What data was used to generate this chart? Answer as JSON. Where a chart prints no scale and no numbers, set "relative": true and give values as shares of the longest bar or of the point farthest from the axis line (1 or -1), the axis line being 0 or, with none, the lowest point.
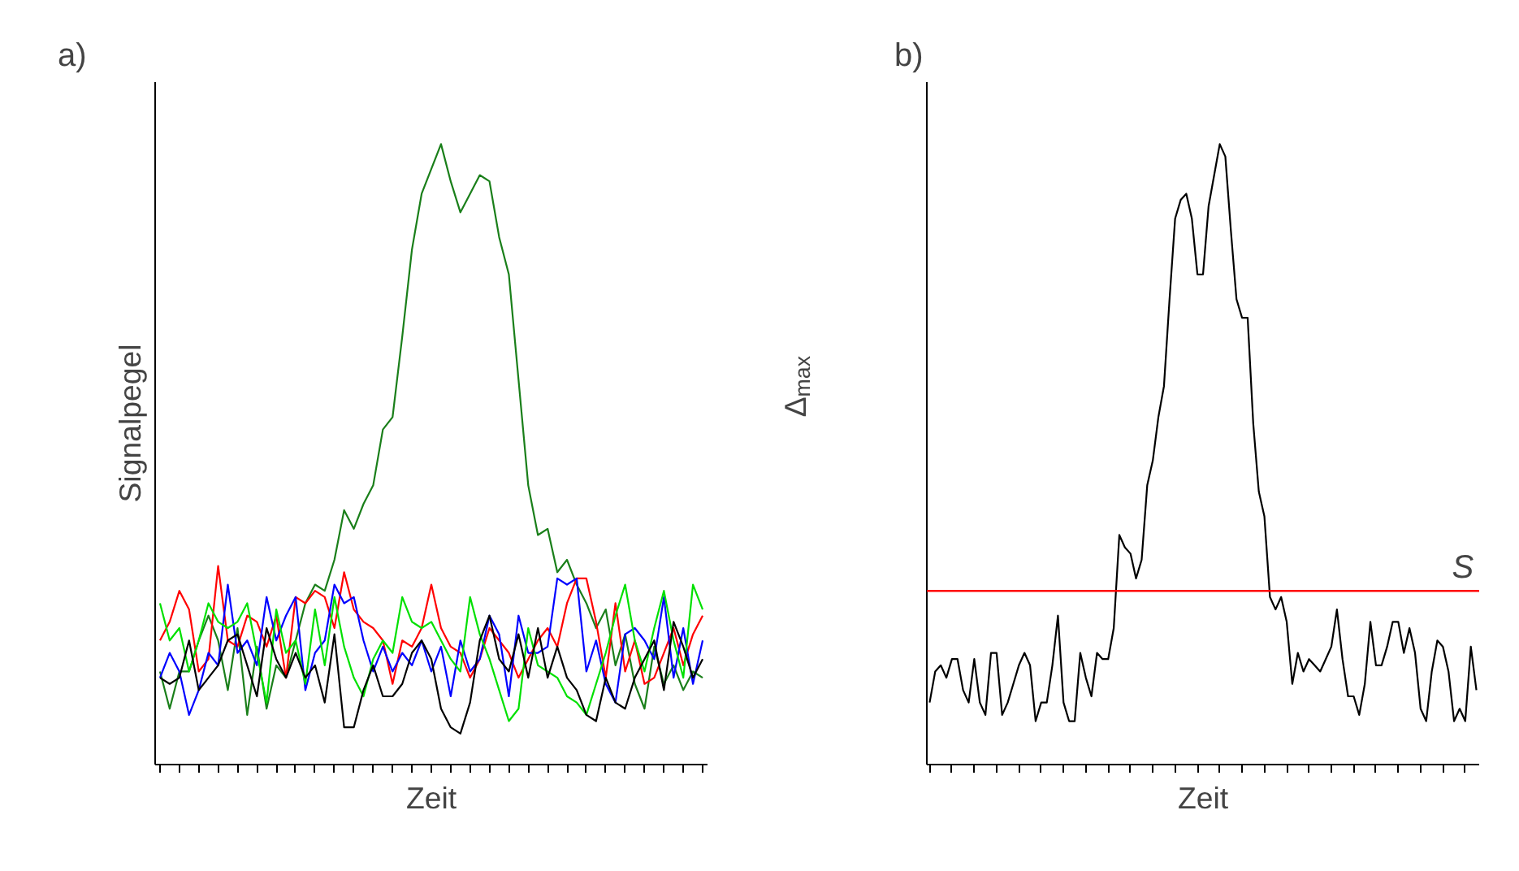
{
  "chart_data": [
    {
      "type": "line",
      "title": "a)",
      "xlabel": "Zeit",
      "ylabel": "Signalpegel",
      "relative": true,
      "grid": false,
      "categories": [
        null,
        null,
        null,
        null,
        null,
        null,
        null,
        null,
        null,
        null,
        null,
        null,
        null,
        null,
        null,
        null,
        null,
        null,
        null,
        null,
        null,
        null,
        null,
        null,
        null,
        null,
        null,
        null,
        null,
        null,
        null,
        null,
        null,
        null,
        null,
        null,
        null,
        null,
        null,
        null,
        null,
        null,
        null,
        null,
        null,
        null,
        null,
        null,
        null,
        null,
        null,
        null,
        null,
        null,
        null,
        null,
        null
      ],
      "series": [
        {
          "color": "#1a7f1a",
          "values": [
            0.15,
            0.09,
            0.15,
            0.15,
            0.2,
            0.24,
            0.2,
            0.12,
            0.22,
            0.08,
            0.19,
            0.09,
            0.16,
            0.14,
            0.2,
            0.26,
            0.29,
            0.28,
            0.33,
            0.41,
            0.38,
            0.42,
            0.45,
            0.54,
            0.56,
            0.69,
            0.83,
            0.92,
            0.96,
            1,
            0.94,
            0.89,
            0.92,
            0.95,
            0.94,
            0.85,
            0.79,
            0.62,
            0.45,
            0.37,
            0.38,
            0.31,
            0.33,
            0.29,
            0.26,
            0.22,
            0.25,
            0.16,
            0.21,
            0.13,
            0.09,
            0.19,
            0.13,
            0.16,
            0.12,
            0.15,
            0.14
          ]
        },
        {
          "color": "#ff0000",
          "values": [
            0.2,
            0.23,
            0.28,
            0.25,
            0.15,
            0.17,
            0.32,
            0.2,
            0.19,
            0.24,
            0.23,
            0.19,
            0.24,
            0.14,
            0.27,
            0.26,
            0.28,
            0.27,
            0.22,
            0.31,
            0.25,
            0.23,
            0.22,
            0.2,
            0.13,
            0.2,
            0.19,
            0.22,
            0.29,
            0.22,
            0.19,
            0.18,
            0.14,
            0.17,
            0.22,
            0.2,
            0.18,
            0.14,
            0.17,
            0.2,
            0.22,
            0.19,
            0.26,
            0.3,
            0.3,
            0.23,
            0.14,
            0.26,
            0.15,
            0.2,
            0.13,
            0.14,
            0.18,
            0.22,
            0.16,
            0.21,
            0.24
          ]
        },
        {
          "color": "#0000ff",
          "values": [
            0.14,
            0.18,
            0.15,
            0.08,
            0.12,
            0.18,
            0.16,
            0.29,
            0.18,
            0.2,
            0.16,
            0.27,
            0.2,
            0.24,
            0.27,
            0.12,
            0.18,
            0.2,
            0.29,
            0.26,
            0.27,
            0.2,
            0.15,
            0.19,
            0.15,
            0.18,
            0.16,
            0.2,
            0.15,
            0.19,
            0.11,
            0.2,
            0.15,
            0.17,
            0.24,
            0.21,
            0.11,
            0.24,
            0.18,
            0.18,
            0.19,
            0.3,
            0.29,
            0.3,
            0.15,
            0.2,
            0.13,
            0.1,
            0.21,
            0.22,
            0.2,
            0.17,
            0.27,
            0.14,
            0.22,
            0.13,
            0.2
          ]
        },
        {
          "color": "#00e000",
          "values": [
            0.26,
            0.2,
            0.22,
            0.15,
            0.2,
            0.26,
            0.23,
            0.22,
            0.23,
            0.26,
            0.18,
            0.1,
            0.25,
            0.18,
            0.2,
            0.13,
            0.25,
            0.16,
            0.27,
            0.19,
            0.14,
            0.11,
            0.17,
            0.2,
            0.18,
            0.27,
            0.23,
            0.22,
            0.23,
            0.2,
            0.17,
            0.15,
            0.27,
            0.21,
            0.17,
            0.12,
            0.07,
            0.09,
            0.22,
            0.16,
            0.15,
            0.14,
            0.11,
            0.1,
            0.08,
            0.13,
            0.18,
            0.24,
            0.29,
            0.2,
            0.15,
            0.22,
            0.28,
            0.2,
            0.14,
            0.29,
            0.25
          ]
        },
        {
          "color": "#000000",
          "values": [
            0.14,
            0.13,
            0.14,
            0.2,
            0.12,
            0.14,
            0.16,
            0.2,
            0.21,
            0.16,
            0.11,
            0.22,
            0.17,
            0.14,
            0.18,
            0.14,
            0.16,
            0.1,
            0.21,
            0.06,
            0.06,
            0.12,
            0.16,
            0.11,
            0.11,
            0.13,
            0.18,
            0.2,
            0.17,
            0.09,
            0.06,
            0.05,
            0.1,
            0.2,
            0.24,
            0.17,
            0.15,
            0.21,
            0.14,
            0.22,
            0.14,
            0.19,
            0.14,
            0.12,
            0.08,
            0.07,
            0.14,
            0.1,
            0.09,
            0.14,
            0.17,
            0.2,
            0.12,
            0.23,
            0.19,
            0.14,
            0.17
          ]
        }
      ]
    },
    {
      "type": "line",
      "title": "b)",
      "xlabel": "Zeit",
      "ylabel": "Δ$_{max}$",
      "relative": true,
      "grid": false,
      "categories": [
        null,
        null,
        null,
        null,
        null,
        null,
        null,
        null,
        null,
        null,
        null,
        null,
        null,
        null,
        null,
        null,
        null,
        null,
        null,
        null,
        null,
        null,
        null,
        null,
        null,
        null,
        null,
        null,
        null,
        null,
        null,
        null,
        null,
        null,
        null,
        null,
        null,
        null,
        null,
        null,
        null,
        null,
        null,
        null,
        null,
        null,
        null,
        null,
        null,
        null,
        null,
        null,
        null,
        null,
        null,
        null,
        null,
        null,
        null,
        null,
        null,
        null,
        null,
        null,
        null,
        null,
        null,
        null,
        null,
        null,
        null,
        null,
        null,
        null,
        null,
        null,
        null,
        null,
        null,
        null,
        null,
        null,
        null,
        null,
        null,
        null,
        null,
        null,
        null,
        null,
        null,
        null,
        null,
        null,
        null,
        null,
        null,
        null,
        null
      ],
      "series": [
        {
          "color": "#000000",
          "values": [
            0.1,
            0.15,
            0.16,
            0.14,
            0.17,
            0.17,
            0.12,
            0.1,
            0.17,
            0.1,
            0.08,
            0.18,
            0.18,
            0.08,
            0.1,
            0.13,
            0.16,
            0.18,
            0.16,
            0.07,
            0.1,
            0.1,
            0.16,
            0.24,
            0.1,
            0.07,
            0.07,
            0.18,
            0.14,
            0.11,
            0.18,
            0.17,
            0.17,
            0.22,
            0.37,
            0.35,
            0.34,
            0.3,
            0.33,
            0.45,
            0.49,
            0.56,
            0.61,
            0.75,
            0.88,
            0.91,
            0.92,
            0.88,
            0.79,
            0.79,
            0.9,
            0.95,
            1,
            0.98,
            0.86,
            0.75,
            0.72,
            0.72,
            0.55,
            0.44,
            0.4,
            0.27,
            0.25,
            0.27,
            0.23,
            0.13,
            0.18,
            0.15,
            0.17,
            0.16,
            0.15,
            0.17,
            0.19,
            0.25,
            0.17,
            0.11,
            0.11,
            0.08,
            0.13,
            0.23,
            0.16,
            0.16,
            0.19,
            0.23,
            0.23,
            0.18,
            0.22,
            0.18,
            0.09,
            0.07,
            0.15,
            0.2,
            0.19,
            0.15,
            0.07,
            0.09,
            0.07,
            0.19,
            0.12
          ]
        }
      ],
      "ref_lines": [
        {
          "axis": "y",
          "value": 0.28,
          "label": "S",
          "color": "#ff0000"
        }
      ]
    }
  ]
}
